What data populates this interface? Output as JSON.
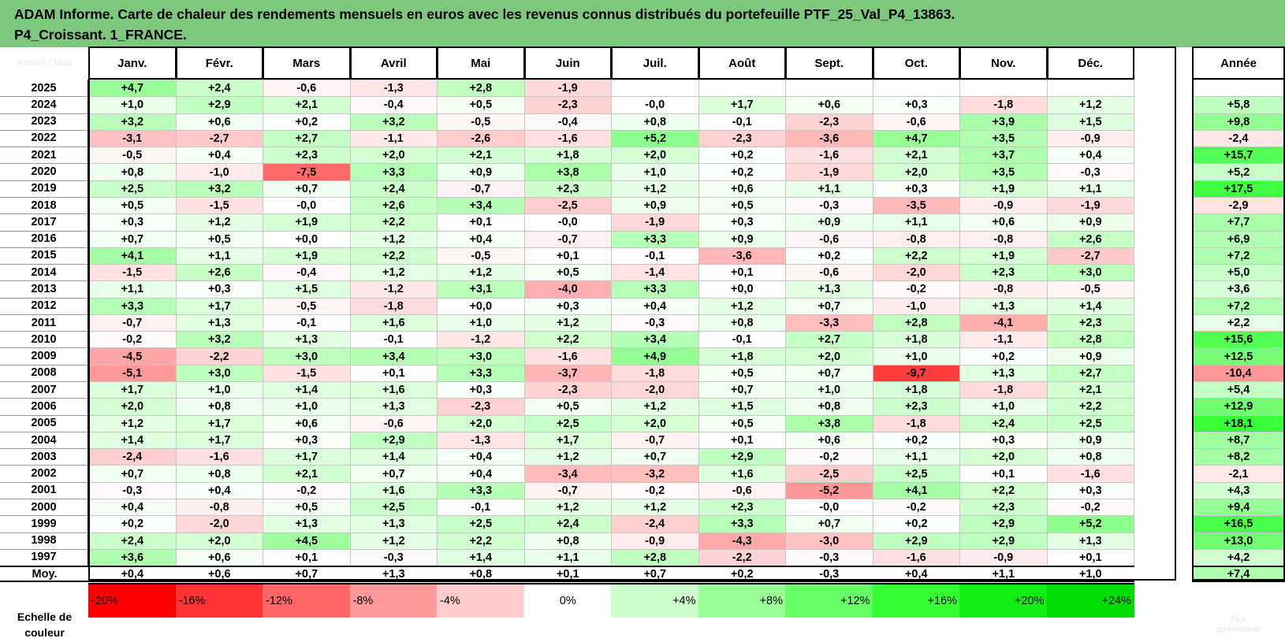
{
  "title": {
    "line1": "ADAM Informe. Carte de chaleur des rendements mensuels en euros avec les revenus connus distribués du portefeuille PTF_25_Val_P4_13863.",
    "line2": "P4_Croissant. 1_FRANCE."
  },
  "corner_label": "Années / Mois",
  "chart_data": {
    "type": "heatmap",
    "columns": [
      "Janv.",
      "Févr.",
      "Mars",
      "Avril",
      "Mai",
      "Juin",
      "Juil.",
      "Août",
      "Sept.",
      "Oct.",
      "Nov.",
      "Déc."
    ],
    "year_column": "Année",
    "rows": [
      {
        "year": "2025",
        "months": [
          "+4,7",
          "+2,4",
          "-0,6",
          "-1,3",
          "+2,8",
          "-1,9",
          "",
          "",
          "",
          "",
          "",
          ""
        ],
        "annual": ""
      },
      {
        "year": "2024",
        "months": [
          "+1,0",
          "+2,9",
          "+2,1",
          "-0,4",
          "+0,5",
          "-2,3",
          "-0,0",
          "+1,7",
          "+0,6",
          "+0,3",
          "-1,8",
          "+1,2"
        ],
        "annual": "+5,8"
      },
      {
        "year": "2023",
        "months": [
          "+3,2",
          "+0,6",
          "+0,2",
          "+3,2",
          "-0,5",
          "-0,4",
          "+0,8",
          "-0,1",
          "-2,3",
          "-0,6",
          "+3,9",
          "+1,5"
        ],
        "annual": "+9,8"
      },
      {
        "year": "2022",
        "months": [
          "-3,1",
          "-2,7",
          "+2,7",
          "-1,1",
          "-2,6",
          "-1,6",
          "+5,2",
          "-2,3",
          "-3,6",
          "+4,7",
          "+3,5",
          "-0,9"
        ],
        "annual": "-2,4"
      },
      {
        "year": "2021",
        "months": [
          "-0,5",
          "+0,4",
          "+2,3",
          "+2,0",
          "+2,1",
          "+1,8",
          "+2,0",
          "+0,2",
          "-1,6",
          "+2,1",
          "+3,7",
          "+0,4"
        ],
        "annual": "+15,7"
      },
      {
        "year": "2020",
        "months": [
          "+0,8",
          "-1,0",
          "-7,5",
          "+3,3",
          "+0,9",
          "+3,8",
          "+1,0",
          "+0,2",
          "-1,9",
          "+2,0",
          "+3,5",
          "-0,3"
        ],
        "annual": "+5,2"
      },
      {
        "year": "2019",
        "months": [
          "+2,5",
          "+3,2",
          "+0,7",
          "+2,4",
          "-0,7",
          "+2,3",
          "+1,2",
          "+0,6",
          "+1,1",
          "+0,3",
          "+1,9",
          "+1,1"
        ],
        "annual": "+17,5"
      },
      {
        "year": "2018",
        "months": [
          "+0,5",
          "-1,5",
          "-0,0",
          "+2,6",
          "+3,4",
          "-2,5",
          "+0,9",
          "+0,5",
          "-0,3",
          "-3,5",
          "-0,9",
          "-1,9"
        ],
        "annual": "-2,9"
      },
      {
        "year": "2017",
        "months": [
          "+0,3",
          "+1,2",
          "+1,9",
          "+2,2",
          "+0,1",
          "-0,0",
          "-1,9",
          "+0,3",
          "+0,9",
          "+1,1",
          "+0,6",
          "+0,9"
        ],
        "annual": "+7,7"
      },
      {
        "year": "2016",
        "months": [
          "+0,7",
          "+0,5",
          "+0,0",
          "+1,2",
          "+0,4",
          "-0,7",
          "+3,3",
          "+0,9",
          "-0,6",
          "-0,8",
          "-0,8",
          "+2,6"
        ],
        "annual": "+6,9"
      },
      {
        "year": "2015",
        "months": [
          "+4,1",
          "+1,1",
          "+1,9",
          "+2,2",
          "-0,5",
          "+0,1",
          "-0,1",
          "-3,6",
          "+0,2",
          "+2,2",
          "+1,9",
          "-2,7"
        ],
        "annual": "+7,2"
      },
      {
        "year": "2014",
        "months": [
          "-1,5",
          "+2,6",
          "-0,4",
          "+1,2",
          "+1,2",
          "+0,5",
          "-1,4",
          "+0,1",
          "-0,6",
          "-2,0",
          "+2,3",
          "+3,0"
        ],
        "annual": "+5,0"
      },
      {
        "year": "2013",
        "months": [
          "+1,1",
          "+0,3",
          "+1,5",
          "-1,2",
          "+3,1",
          "-4,0",
          "+3,3",
          "+0,0",
          "+1,3",
          "-0,2",
          "-0,8",
          "-0,5"
        ],
        "annual": "+3,6"
      },
      {
        "year": "2012",
        "months": [
          "+3,3",
          "+1,7",
          "-0,5",
          "-1,8",
          "+0,0",
          "+0,3",
          "+0,4",
          "+1,2",
          "+0,7",
          "-1,0",
          "+1,3",
          "+1,4"
        ],
        "annual": "+7,2"
      },
      {
        "year": "2011",
        "months": [
          "-0,7",
          "+1,3",
          "-0,1",
          "+1,6",
          "+1,0",
          "+1,2",
          "-0,3",
          "+0,8",
          "-3,3",
          "+2,8",
          "-4,1",
          "+2,3"
        ],
        "annual": "+2,2"
      },
      {
        "year": "2010",
        "months": [
          "-0,2",
          "+3,2",
          "+1,3",
          "-0,1",
          "-1,2",
          "+2,2",
          "+3,4",
          "-0,1",
          "+2,7",
          "+1,8",
          "-1,1",
          "+2,8"
        ],
        "annual": "+15,6"
      },
      {
        "year": "2009",
        "months": [
          "-4,5",
          "-2,2",
          "+3,0",
          "+3,4",
          "+3,0",
          "-1,6",
          "+4,9",
          "+1,8",
          "+2,0",
          "+1,0",
          "+0,2",
          "+0,9"
        ],
        "annual": "+12,5"
      },
      {
        "year": "2008",
        "months": [
          "-5,1",
          "+3,0",
          "-1,5",
          "+0,1",
          "+3,3",
          "-3,7",
          "-1,8",
          "+0,5",
          "+0,7",
          "-9,7",
          "+1,3",
          "+2,7"
        ],
        "annual": "-10,4"
      },
      {
        "year": "2007",
        "months": [
          "+1,7",
          "+1,0",
          "+1,4",
          "+1,6",
          "+0,3",
          "-2,3",
          "-2,0",
          "+0,7",
          "+1,0",
          "+1,8",
          "-1,8",
          "+2,1"
        ],
        "annual": "+5,4"
      },
      {
        "year": "2006",
        "months": [
          "+2,0",
          "+0,8",
          "+1,0",
          "+1,3",
          "-2,3",
          "+0,5",
          "+1,2",
          "+1,5",
          "+0,8",
          "+2,3",
          "+1,0",
          "+2,2"
        ],
        "annual": "+12,9"
      },
      {
        "year": "2005",
        "months": [
          "+1,2",
          "+1,7",
          "+0,6",
          "-0,6",
          "+2,0",
          "+2,5",
          "+2,0",
          "+0,5",
          "+3,8",
          "-1,8",
          "+2,4",
          "+2,5"
        ],
        "annual": "+18,1"
      },
      {
        "year": "2004",
        "months": [
          "+1,4",
          "+1,7",
          "+0,3",
          "+2,9",
          "-1,3",
          "+1,7",
          "-0,7",
          "+0,1",
          "+0,6",
          "+0,2",
          "+0,3",
          "+0,9"
        ],
        "annual": "+8,7"
      },
      {
        "year": "2003",
        "months": [
          "-2,4",
          "-1,6",
          "+1,7",
          "+1,4",
          "+0,4",
          "+1,2",
          "+0,7",
          "+2,9",
          "-0,2",
          "+1,1",
          "+2,0",
          "+0,8"
        ],
        "annual": "+8,2"
      },
      {
        "year": "2002",
        "months": [
          "+0,7",
          "+0,8",
          "+2,1",
          "+0,7",
          "+0,4",
          "-3,4",
          "-3,2",
          "+1,6",
          "-2,5",
          "+2,5",
          "+0,1",
          "-1,6"
        ],
        "annual": "-2,1"
      },
      {
        "year": "2001",
        "months": [
          "-0,3",
          "+0,4",
          "-0,2",
          "+1,6",
          "+3,3",
          "-0,7",
          "-0,2",
          "-0,6",
          "-5,2",
          "+4,1",
          "+2,2",
          "+0,3"
        ],
        "annual": "+4,3"
      },
      {
        "year": "2000",
        "months": [
          "+0,4",
          "-0,8",
          "+0,5",
          "+2,5",
          "-0,1",
          "+1,2",
          "+1,2",
          "+2,3",
          "-0,0",
          "-0,2",
          "+2,3",
          "-0,2"
        ],
        "annual": "+9,4"
      },
      {
        "year": "1999",
        "months": [
          "+0,2",
          "-2,0",
          "+1,3",
          "+1,3",
          "+2,5",
          "+2,4",
          "-2,4",
          "+3,3",
          "+0,7",
          "+0,2",
          "+2,9",
          "+5,2"
        ],
        "annual": "+16,5"
      },
      {
        "year": "1998",
        "months": [
          "+2,4",
          "+2,0",
          "+4,5",
          "+1,2",
          "+2,2",
          "+0,8",
          "-0,9",
          "-4,3",
          "-3,0",
          "+2,9",
          "+2,9",
          "+1,3"
        ],
        "annual": "+13,0"
      },
      {
        "year": "1997",
        "months": [
          "+3,6",
          "+0,6",
          "+0,1",
          "-0,3",
          "+1,4",
          "+1,1",
          "+2,8",
          "-2,2",
          "-0,3",
          "-1,6",
          "-0,9",
          "+0,1"
        ],
        "annual": "+4,2"
      }
    ],
    "average": {
      "label": "Moy.",
      "months": [
        "+0,4",
        "+0,6",
        "+0,7",
        "+1,3",
        "+0,8",
        "+0,1",
        "+0,7",
        "+0,2",
        "-0,3",
        "+0,4",
        "+1,1",
        "+1,0"
      ],
      "annual": "+7,4"
    },
    "color_scale": {
      "label": "Echelle de couleur",
      "steps": [
        {
          "label": "-20%",
          "color": "#ff0000"
        },
        {
          "label": "-16%",
          "color": "#ff3333"
        },
        {
          "label": "-12%",
          "color": "#ff6666"
        },
        {
          "label": "-8%",
          "color": "#ff9999"
        },
        {
          "label": "-4%",
          "color": "#ffcccc"
        },
        {
          "label": "0%",
          "color": "#ffffff"
        },
        {
          "label": "+4%",
          "color": "#ccffcc"
        },
        {
          "label": "+8%",
          "color": "#99ff99"
        },
        {
          "label": "+12%",
          "color": "#66ff66"
        },
        {
          "label": "+16%",
          "color": "#33ff33"
        },
        {
          "label": "+20%",
          "color": "#11ee11"
        },
        {
          "label": "+24%",
          "color": "#00dd00"
        }
      ],
      "year_legend_line1": "Flux",
      "year_legend_line2": "de trésorerie"
    },
    "monthly_color_range": [
      -10,
      10
    ],
    "annual_color_range": [
      -20,
      20
    ]
  }
}
